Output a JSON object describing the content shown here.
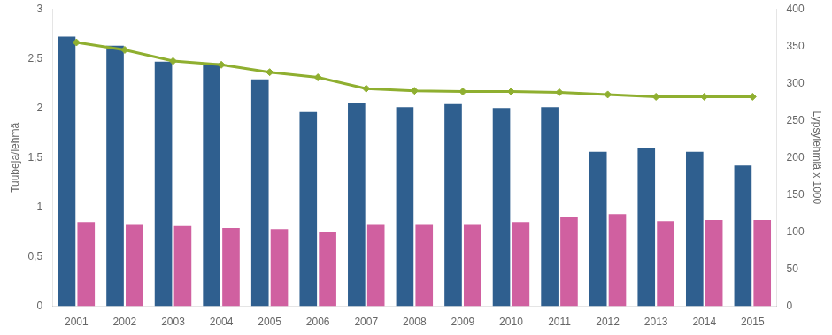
{
  "chart_data": {
    "type": "bar",
    "categories": [
      "2001",
      "2002",
      "2003",
      "2004",
      "2005",
      "2006",
      "2007",
      "2008",
      "2009",
      "2010",
      "2011",
      "2012",
      "2013",
      "2014",
      "2015"
    ],
    "series": [
      {
        "type": "bar",
        "color": "#2F5F8F",
        "values": [
          2.72,
          2.63,
          2.47,
          2.45,
          2.29,
          1.96,
          2.05,
          2.01,
          2.04,
          2.0,
          2.01,
          1.56,
          1.6,
          1.56,
          1.42
        ]
      },
      {
        "type": "bar",
        "color": "#D060A0",
        "values": [
          0.85,
          0.83,
          0.81,
          0.79,
          0.78,
          0.75,
          0.83,
          0.83,
          0.83,
          0.85,
          0.9,
          0.93,
          0.86,
          0.87,
          0.87
        ]
      },
      {
        "type": "line",
        "color": "#8FAF30",
        "marker": "diamond",
        "axis": "y2",
        "values": [
          355,
          345,
          330,
          325,
          315,
          308,
          293,
          290,
          289,
          289,
          288,
          285,
          282,
          282,
          282
        ]
      }
    ],
    "ylabel": "Tuubeja/lehmä",
    "y2label": "Lypsylehmiä x 1000",
    "ylim": [
      0,
      3
    ],
    "yticks": [
      0,
      {
        "value": 0.5,
        "label": "0,5"
      },
      1,
      {
        "value": 1.5,
        "label": "1,5"
      },
      2,
      {
        "value": 2.5,
        "label": "2,5"
      },
      3
    ],
    "y2lim": [
      0,
      400
    ],
    "y2ticks": [
      0,
      50,
      100,
      150,
      200,
      250,
      300,
      350,
      400
    ],
    "grid": false
  }
}
